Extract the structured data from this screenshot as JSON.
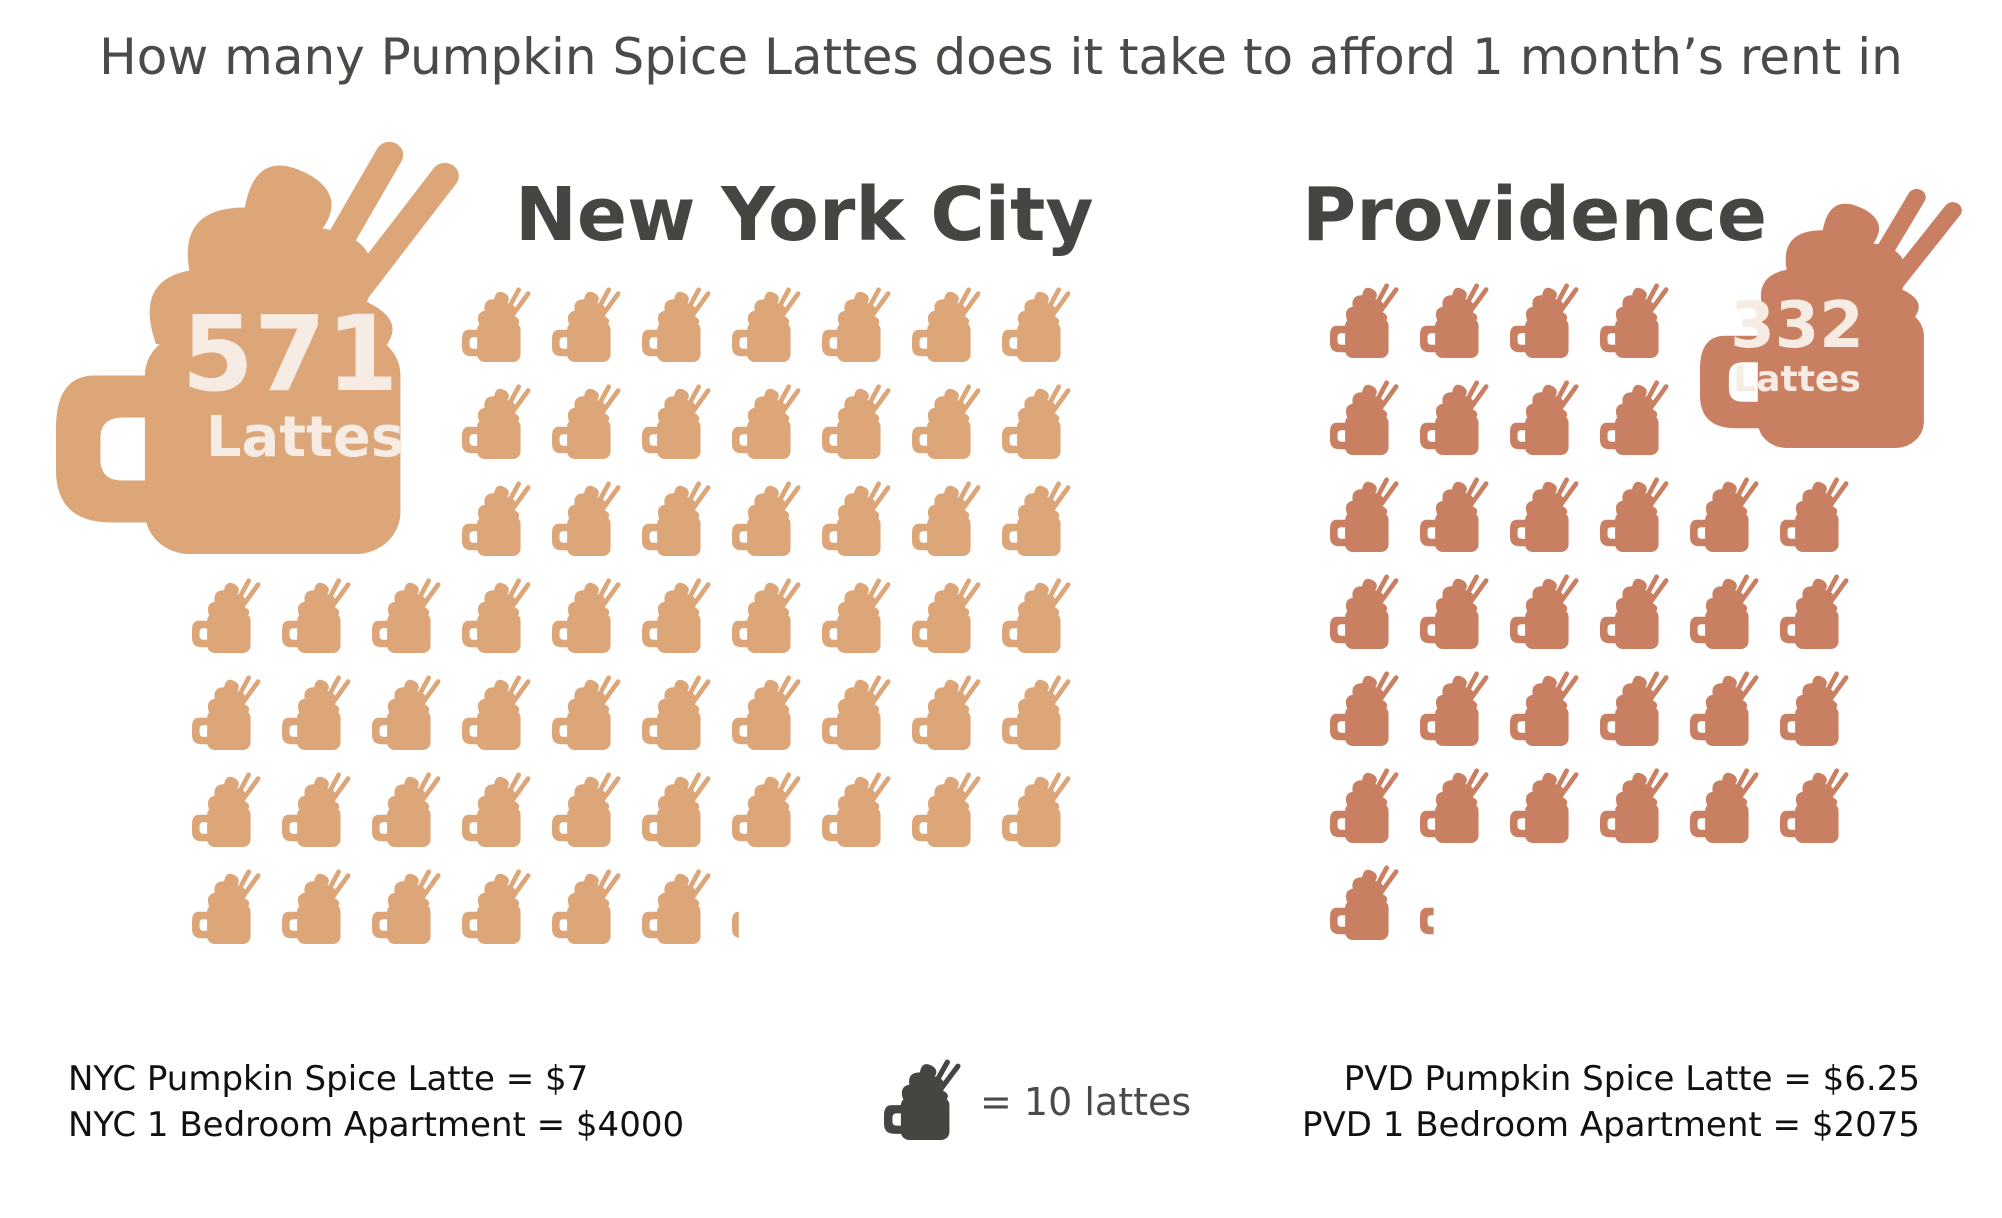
{
  "title": "How many Pumpkin Spice Lattes does it take to afford 1 month’s rent in",
  "colors": {
    "nyc": "#dca678",
    "pvd": "#c97f61",
    "legend_icon": "#454542",
    "text": "#4a4a47"
  },
  "icon": "latte-mug-icon",
  "chart_data": [
    {
      "type": "pictograph",
      "city": "New York City",
      "total": "571",
      "unit": "Lattes",
      "value": 571,
      "lattes_per_icon": 10,
      "full_icons": 57,
      "partial_icon_fraction": 0.1
    },
    {
      "type": "pictograph",
      "city": "Providence",
      "total": "332",
      "unit": "Lattes",
      "value": 332,
      "lattes_per_icon": 10,
      "full_icons": 33,
      "partial_icon_fraction": 0.2
    }
  ],
  "nyc_notes": {
    "latte_price": "NYC Pumpkin Spice Latte = $7",
    "rent": "NYC 1 Bedroom Apartment = $4000"
  },
  "pvd_notes": {
    "latte_price": "PVD Pumpkin Spice Latte = $6.25",
    "rent": "PVD 1 Bedroom Apartment = $2075"
  },
  "legend": {
    "label": "= 10 lattes"
  }
}
